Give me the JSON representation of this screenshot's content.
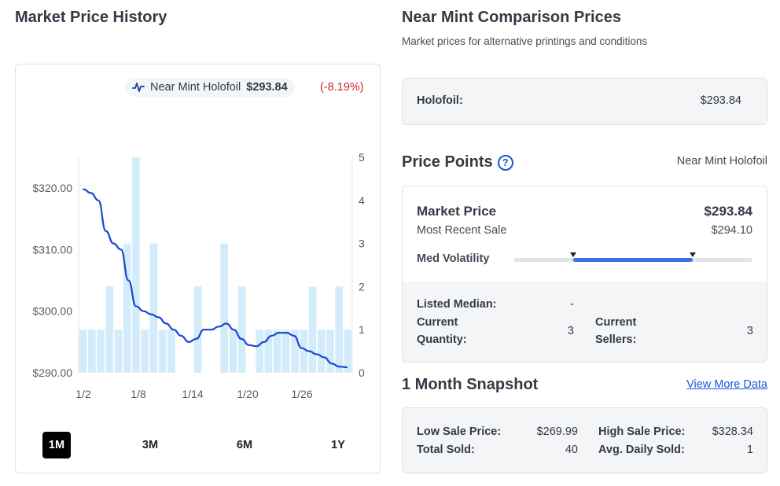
{
  "left": {
    "title": "Market Price History",
    "legend": {
      "label": "Near Mint Holofoil",
      "price": "$293.84",
      "change": "(-8.19%)"
    },
    "ranges": [
      {
        "label": "1M",
        "active": true
      },
      {
        "label": "3M",
        "active": false
      },
      {
        "label": "6M",
        "active": false
      },
      {
        "label": "1Y",
        "active": false
      }
    ]
  },
  "chart_data": {
    "type": "line",
    "title": "",
    "x_ticks": [
      "1/2",
      "1/8",
      "1/14",
      "1/20",
      "1/26"
    ],
    "y_left_ticks": [
      "$290.00",
      "$300.00",
      "$310.00",
      "$320.00"
    ],
    "y_left_range": [
      290,
      325
    ],
    "y_right_ticks": [
      "0",
      "1",
      "2",
      "3",
      "4",
      "5"
    ],
    "y_right_range": [
      0,
      5
    ],
    "series": [
      {
        "type": "line",
        "color": "#1a47d4",
        "values": [
          319.8,
          319.2,
          318.0,
          313.0,
          311.0,
          310.0,
          305.0,
          300.8,
          300.0,
          299.5,
          299.0,
          298.0,
          297.0,
          296.0,
          295.0,
          295.5,
          297.0,
          297.0,
          297.5,
          298.0,
          297.0,
          295.5,
          294.5,
          294.3,
          295.0,
          296.0,
          296.5,
          296.5,
          296.0,
          294.0,
          293.5,
          293.0,
          292.5,
          291.5,
          291.0,
          290.9
        ]
      },
      {
        "type": "bar",
        "color": "#d2ecfa",
        "values": [
          1,
          1,
          1,
          2,
          1,
          3,
          5,
          1,
          3,
          1,
          1,
          0,
          0,
          2,
          0,
          0,
          3,
          1,
          2,
          0,
          1,
          1,
          1,
          1,
          1,
          1,
          2,
          1,
          1,
          2,
          1
        ]
      }
    ]
  },
  "right": {
    "title": "Near Mint Comparison Prices",
    "subtitle": "Market prices for alternative printings and conditions",
    "holofoil": {
      "label": "Holofoil:",
      "value": "$293.84"
    },
    "price_points": {
      "title": "Price Points",
      "help_icon": "?",
      "condition": "Near Mint Holofoil",
      "market_price_label": "Market Price",
      "market_price_value": "$293.84",
      "recent_sale_label": "Most Recent Sale",
      "recent_sale_value": "$294.10",
      "volatility_label": "Med Volatility",
      "volatility_low": 0.25,
      "volatility_high": 0.75,
      "listed_median_label": "Listed Median:",
      "listed_median_value": "-",
      "current_quantity_label": "Current Quantity:",
      "current_quantity_value": "3",
      "current_sellers_label": "Current Sellers:",
      "current_sellers_value": "3"
    },
    "snapshot": {
      "title": "1 Month Snapshot",
      "view_more": "View More Data",
      "low_sale_label": "Low Sale Price:",
      "low_sale_value": "$269.99",
      "high_sale_label": "High Sale Price:",
      "high_sale_value": "$328.34",
      "total_sold_label": "Total Sold:",
      "total_sold_value": "40",
      "avg_daily_label": "Avg. Daily Sold:",
      "avg_daily_value": "1"
    }
  }
}
